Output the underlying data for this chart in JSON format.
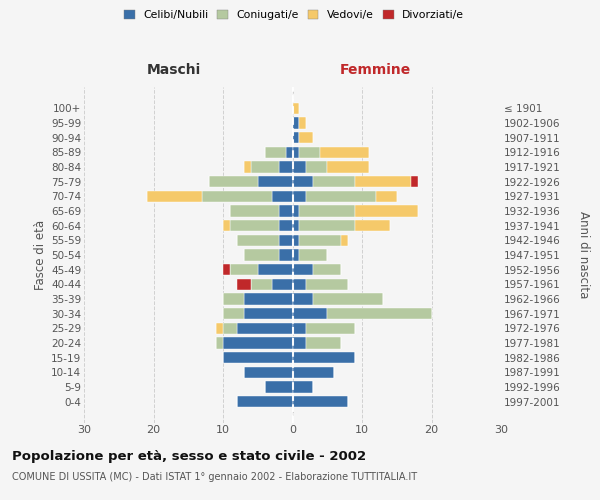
{
  "age_groups": [
    "100+",
    "95-99",
    "90-94",
    "85-89",
    "80-84",
    "75-79",
    "70-74",
    "65-69",
    "60-64",
    "55-59",
    "50-54",
    "45-49",
    "40-44",
    "35-39",
    "30-34",
    "25-29",
    "20-24",
    "15-19",
    "10-14",
    "5-9",
    "0-4"
  ],
  "birth_years": [
    "≤ 1901",
    "1902-1906",
    "1907-1911",
    "1912-1916",
    "1917-1921",
    "1922-1926",
    "1927-1931",
    "1932-1936",
    "1937-1941",
    "1942-1946",
    "1947-1951",
    "1952-1956",
    "1957-1961",
    "1962-1966",
    "1967-1971",
    "1972-1976",
    "1977-1981",
    "1982-1986",
    "1987-1991",
    "1992-1996",
    "1997-2001"
  ],
  "maschi": {
    "celibi": [
      0,
      0,
      0,
      1,
      2,
      5,
      3,
      2,
      2,
      2,
      2,
      5,
      3,
      7,
      7,
      8,
      10,
      10,
      7,
      4,
      8
    ],
    "coniugati": [
      0,
      0,
      0,
      3,
      4,
      7,
      10,
      7,
      7,
      6,
      5,
      4,
      3,
      3,
      3,
      2,
      1,
      0,
      0,
      0,
      0
    ],
    "vedovi": [
      0,
      0,
      0,
      0,
      1,
      0,
      8,
      0,
      1,
      0,
      0,
      0,
      0,
      0,
      0,
      1,
      0,
      0,
      0,
      0,
      0
    ],
    "divorziati": [
      0,
      0,
      0,
      0,
      0,
      0,
      0,
      0,
      0,
      0,
      0,
      1,
      2,
      0,
      0,
      0,
      0,
      0,
      0,
      0,
      0
    ]
  },
  "femmine": {
    "nubili": [
      0,
      1,
      1,
      1,
      2,
      3,
      2,
      1,
      1,
      1,
      1,
      3,
      2,
      3,
      5,
      2,
      2,
      9,
      6,
      3,
      8
    ],
    "coniugate": [
      0,
      0,
      0,
      3,
      3,
      6,
      10,
      8,
      8,
      6,
      4,
      4,
      6,
      10,
      15,
      7,
      5,
      0,
      0,
      0,
      0
    ],
    "vedove": [
      1,
      1,
      2,
      7,
      6,
      8,
      3,
      9,
      5,
      1,
      0,
      0,
      0,
      0,
      0,
      0,
      0,
      0,
      0,
      0,
      0
    ],
    "divorziate": [
      0,
      0,
      0,
      0,
      0,
      1,
      0,
      0,
      0,
      0,
      0,
      0,
      0,
      0,
      0,
      0,
      0,
      0,
      0,
      0,
      0
    ]
  },
  "colors": {
    "celibi": "#3a6fa8",
    "coniugati": "#b5c9a0",
    "vedovi": "#f5c96a",
    "divorziati": "#c0282a"
  },
  "xlim": 30,
  "title": "Popolazione per età, sesso e stato civile - 2002",
  "subtitle": "COMUNE DI USSITA (MC) - Dati ISTAT 1° gennaio 2002 - Elaborazione TUTTITALIA.IT",
  "ylabel_left": "Fasce di età",
  "ylabel_right": "Anni di nascita",
  "xlabel_left": "Maschi",
  "xlabel_right": "Femmine",
  "bg_color": "#f5f5f5",
  "grid_color": "#cccccc"
}
